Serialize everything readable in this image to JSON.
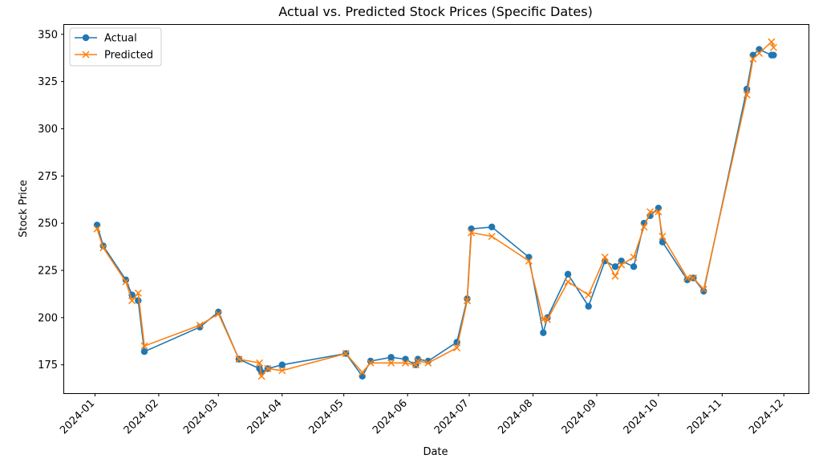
{
  "chart_data": {
    "type": "line",
    "title": "Actual vs. Predicted Stock Prices (Specific Dates)",
    "xlabel": "Date",
    "ylabel": "Stock Price",
    "x_tick_labels": [
      "2024-01",
      "2024-02",
      "2024-03",
      "2024-04",
      "2024-05",
      "2024-06",
      "2024-07",
      "2024-08",
      "2024-09",
      "2024-10",
      "2024-11",
      "2024-12"
    ],
    "x_ticks": [
      "2024-01-01",
      "2024-02-01",
      "2024-03-01",
      "2024-04-01",
      "2024-05-01",
      "2024-06-01",
      "2024-07-01",
      "2024-08-01",
      "2024-09-01",
      "2024-10-01",
      "2024-11-01",
      "2024-12-01"
    ],
    "y_ticks": [
      175,
      200,
      225,
      250,
      275,
      300,
      325,
      350
    ],
    "y_tick_labels": [
      "175",
      "200",
      "225",
      "250",
      "275",
      "300",
      "325",
      "350"
    ],
    "xlim": [
      "2023-12-17",
      "2024-12-13"
    ],
    "ylim": [
      160,
      355
    ],
    "grid": false,
    "legend_position": "upper-left",
    "x": [
      "2024-01-02",
      "2024-01-05",
      "2024-01-16",
      "2024-01-19",
      "2024-01-22",
      "2024-01-25",
      "2024-02-21",
      "2024-03-01",
      "2024-03-11",
      "2024-03-21",
      "2024-03-22",
      "2024-03-25",
      "2024-04-01",
      "2024-05-02",
      "2024-05-10",
      "2024-05-14",
      "2024-05-24",
      "2024-05-31",
      "2024-06-05",
      "2024-06-06",
      "2024-06-11",
      "2024-06-25",
      "2024-06-30",
      "2024-07-02",
      "2024-07-12",
      "2024-07-30",
      "2024-08-06",
      "2024-08-08",
      "2024-08-18",
      "2024-08-28",
      "2024-09-05",
      "2024-09-10",
      "2024-09-13",
      "2024-09-19",
      "2024-09-24",
      "2024-09-27",
      "2024-10-01",
      "2024-10-03",
      "2024-10-15",
      "2024-10-18",
      "2024-10-23",
      "2024-11-13",
      "2024-11-16",
      "2024-11-19",
      "2024-11-25",
      "2024-11-26"
    ],
    "series": [
      {
        "name": "Actual",
        "color": "#1f77b4",
        "marker": "circle",
        "values": [
          249,
          238,
          220,
          212,
          209,
          182,
          195,
          203,
          178,
          173,
          171,
          173,
          175,
          181,
          169,
          177,
          179,
          178,
          175,
          178,
          177,
          187,
          210,
          247,
          248,
          232,
          192,
          200,
          223,
          206,
          230,
          227,
          230,
          227,
          250,
          254,
          258,
          240,
          220,
          221,
          214,
          321,
          339,
          342,
          339,
          339
        ]
      },
      {
        "name": "Predicted",
        "color": "#ff7f0e",
        "marker": "x",
        "values": [
          247,
          237,
          219,
          209,
          213,
          185,
          196,
          202,
          178,
          176,
          169,
          173,
          172,
          181,
          171,
          176,
          176,
          176,
          175,
          177,
          176,
          184,
          209,
          245,
          243,
          230,
          199,
          199,
          219,
          212,
          232,
          222,
          228,
          232,
          248,
          256,
          256,
          243,
          221,
          221,
          215,
          318,
          337,
          340,
          346,
          343
        ]
      }
    ]
  }
}
